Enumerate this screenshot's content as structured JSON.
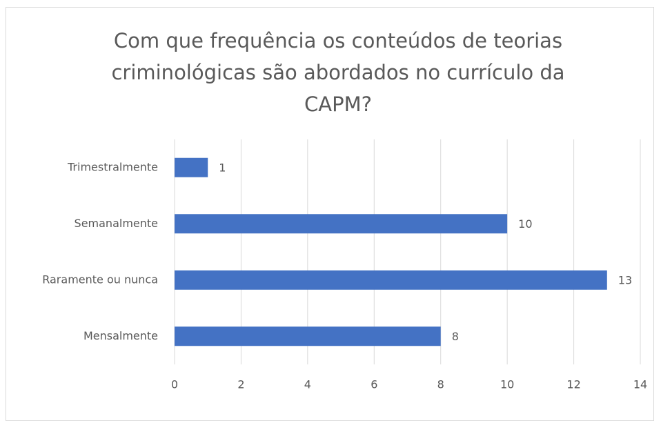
{
  "chart_data": {
    "type": "barh",
    "title": "Com que frequência os conteúdos de teorias criminológicas são abordados no currículo da CAPM?",
    "categories": [
      "Trimestralmente",
      "Semanalmente",
      "Raramente ou nunca",
      "Mensalmente"
    ],
    "values": [
      1,
      10,
      13,
      8
    ],
    "color": "#4472c4",
    "xlim": [
      0,
      14
    ],
    "xticks": [
      0,
      2,
      4,
      6,
      8,
      10,
      12,
      14
    ],
    "grid": true
  }
}
